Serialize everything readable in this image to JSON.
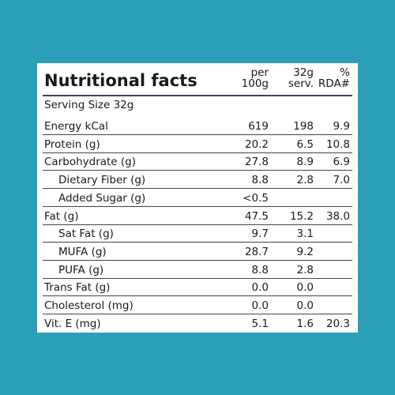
{
  "table": {
    "title": "Nutritional facts",
    "columns": [
      [
        "per",
        "100g"
      ],
      [
        "32g",
        "serv."
      ],
      [
        "%",
        "RDA#"
      ]
    ],
    "serving": "Serving Size 32g",
    "rows": [
      {
        "label": "Energy kCal",
        "cells": [
          "619",
          "198",
          "9.9"
        ]
      },
      {
        "label": "Protein (g)",
        "cells": [
          "20.2",
          "6.5",
          "10.8"
        ]
      },
      {
        "label": "Carbohydrate (g)",
        "cells": [
          "27.8",
          "8.9",
          "6.9"
        ]
      },
      {
        "label": "Dietary Fiber (g)",
        "cells": [
          "8.8",
          "2.8",
          "7.0"
        ],
        "indent": true
      },
      {
        "label": "Added Sugar (g)",
        "cells": [
          "<0.5"
        ],
        "indent": true
      },
      {
        "label": "Fat (g)",
        "cells": [
          "47.5",
          "15.2",
          "38.0"
        ]
      },
      {
        "label": "Sat Fat (g)",
        "cells": [
          "9.7",
          "3.1"
        ],
        "indent": true
      },
      {
        "label": "MUFA (g)",
        "cells": [
          "28.7",
          "9.2"
        ],
        "indent": true
      },
      {
        "label": "PUFA (g)",
        "cells": [
          "8.8",
          "2.8"
        ],
        "indent": true
      },
      {
        "label": "Trans Fat (g)",
        "cells": [
          "0.0",
          "0.0"
        ]
      },
      {
        "label": "Cholesterol (mg)",
        "cells": [
          "0.0",
          "0.0"
        ]
      },
      {
        "label": "Vit. E (mg)",
        "cells": [
          "5.1",
          "1.6",
          "20.3"
        ]
      }
    ]
  }
}
